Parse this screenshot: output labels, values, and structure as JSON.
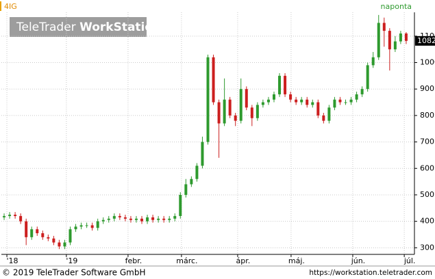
{
  "chart_data": {
    "type": "candlestick",
    "symbol": "4IG",
    "interval": "naponta",
    "watermark_brand": "TeleTrader",
    "watermark_product": "WorkStation",
    "footer_left": "© 2019 TeleTrader Software GmbH",
    "footer_right": "https://workstation.teletrader.com",
    "up_color": "#2e9a2e",
    "down_color": "#cc1f1f",
    "grid": true,
    "xlim": [
      0,
      150
    ],
    "ylim": [
      275,
      1190
    ],
    "xticks": [
      {
        "value": 2,
        "label": "'18"
      },
      {
        "value": 23.6,
        "label": "'19"
      },
      {
        "value": 46,
        "label": "febr."
      },
      {
        "value": 65.4,
        "label": "márc."
      },
      {
        "value": 85.8,
        "label": "ápr."
      },
      {
        "value": 105.2,
        "label": "máj."
      },
      {
        "value": 127.6,
        "label": "jún."
      },
      {
        "value": 146.3,
        "label": "júl."
      }
    ],
    "yticks": [
      300,
      400,
      500,
      600,
      700,
      800,
      900,
      1000,
      1100
    ],
    "x": [
      1,
      3,
      5,
      7,
      9,
      11,
      13,
      15,
      17,
      19,
      21,
      23,
      25,
      27,
      29,
      31,
      33,
      35,
      37,
      39,
      41,
      43,
      45,
      47,
      49,
      51,
      53,
      55,
      57,
      59,
      61,
      63,
      65,
      67,
      69,
      71,
      73,
      75,
      77,
      79,
      81,
      83,
      85,
      87,
      89,
      91,
      93,
      95,
      97,
      99,
      101,
      103,
      105,
      107,
      109,
      111,
      113,
      115,
      117,
      119,
      121,
      123,
      125,
      127,
      129,
      131,
      133,
      135,
      137,
      139,
      141,
      143,
      145,
      147
    ],
    "open": [
      415,
      420,
      425,
      420,
      400,
      340,
      370,
      355,
      340,
      335,
      320,
      305,
      320,
      370,
      380,
      385,
      385,
      375,
      400,
      405,
      410,
      420,
      415,
      410,
      405,
      410,
      400,
      415,
      405,
      410,
      405,
      410,
      420,
      500,
      540,
      560,
      610,
      700,
      1020,
      850,
      770,
      860,
      800,
      780,
      900,
      830,
      790,
      840,
      850,
      860,
      880,
      950,
      880,
      860,
      850,
      860,
      840,
      850,
      800,
      780,
      830,
      860,
      850,
      850,
      860,
      880,
      900,
      990,
      1020,
      1150,
      1120,
      1050,
      1080,
      1110
    ],
    "high": [
      430,
      435,
      435,
      430,
      410,
      380,
      380,
      365,
      350,
      345,
      330,
      330,
      380,
      390,
      395,
      395,
      395,
      410,
      415,
      420,
      430,
      430,
      425,
      420,
      420,
      420,
      425,
      425,
      420,
      420,
      420,
      430,
      510,
      560,
      570,
      620,
      720,
      1030,
      1030,
      860,
      940,
      870,
      810,
      940,
      910,
      840,
      850,
      860,
      870,
      890,
      960,
      960,
      890,
      870,
      870,
      870,
      860,
      860,
      810,
      840,
      870,
      870,
      860,
      870,
      890,
      910,
      1000,
      1040,
      1180,
      1170,
      1130,
      1100,
      1120,
      1115
    ],
    "low": [
      405,
      410,
      410,
      390,
      310,
      330,
      345,
      330,
      325,
      310,
      295,
      295,
      310,
      360,
      370,
      375,
      365,
      365,
      390,
      395,
      400,
      405,
      400,
      395,
      395,
      390,
      390,
      395,
      395,
      395,
      395,
      400,
      410,
      490,
      530,
      550,
      600,
      690,
      840,
      640,
      760,
      790,
      760,
      770,
      820,
      760,
      780,
      830,
      840,
      850,
      870,
      870,
      850,
      840,
      840,
      830,
      830,
      790,
      770,
      770,
      820,
      840,
      840,
      840,
      850,
      870,
      890,
      980,
      1010,
      1060,
      970,
      1040,
      1070,
      1070
    ],
    "close": [
      420,
      425,
      420,
      400,
      340,
      370,
      355,
      340,
      335,
      320,
      305,
      320,
      370,
      380,
      385,
      385,
      375,
      400,
      405,
      410,
      420,
      415,
      410,
      405,
      410,
      400,
      415,
      405,
      410,
      405,
      410,
      420,
      500,
      540,
      560,
      610,
      700,
      1020,
      850,
      770,
      860,
      800,
      780,
      900,
      830,
      790,
      840,
      850,
      860,
      880,
      950,
      880,
      860,
      850,
      860,
      840,
      850,
      800,
      780,
      830,
      860,
      850,
      850,
      860,
      880,
      900,
      990,
      1020,
      1150,
      1120,
      1050,
      1080,
      1110,
      1082
    ]
  }
}
